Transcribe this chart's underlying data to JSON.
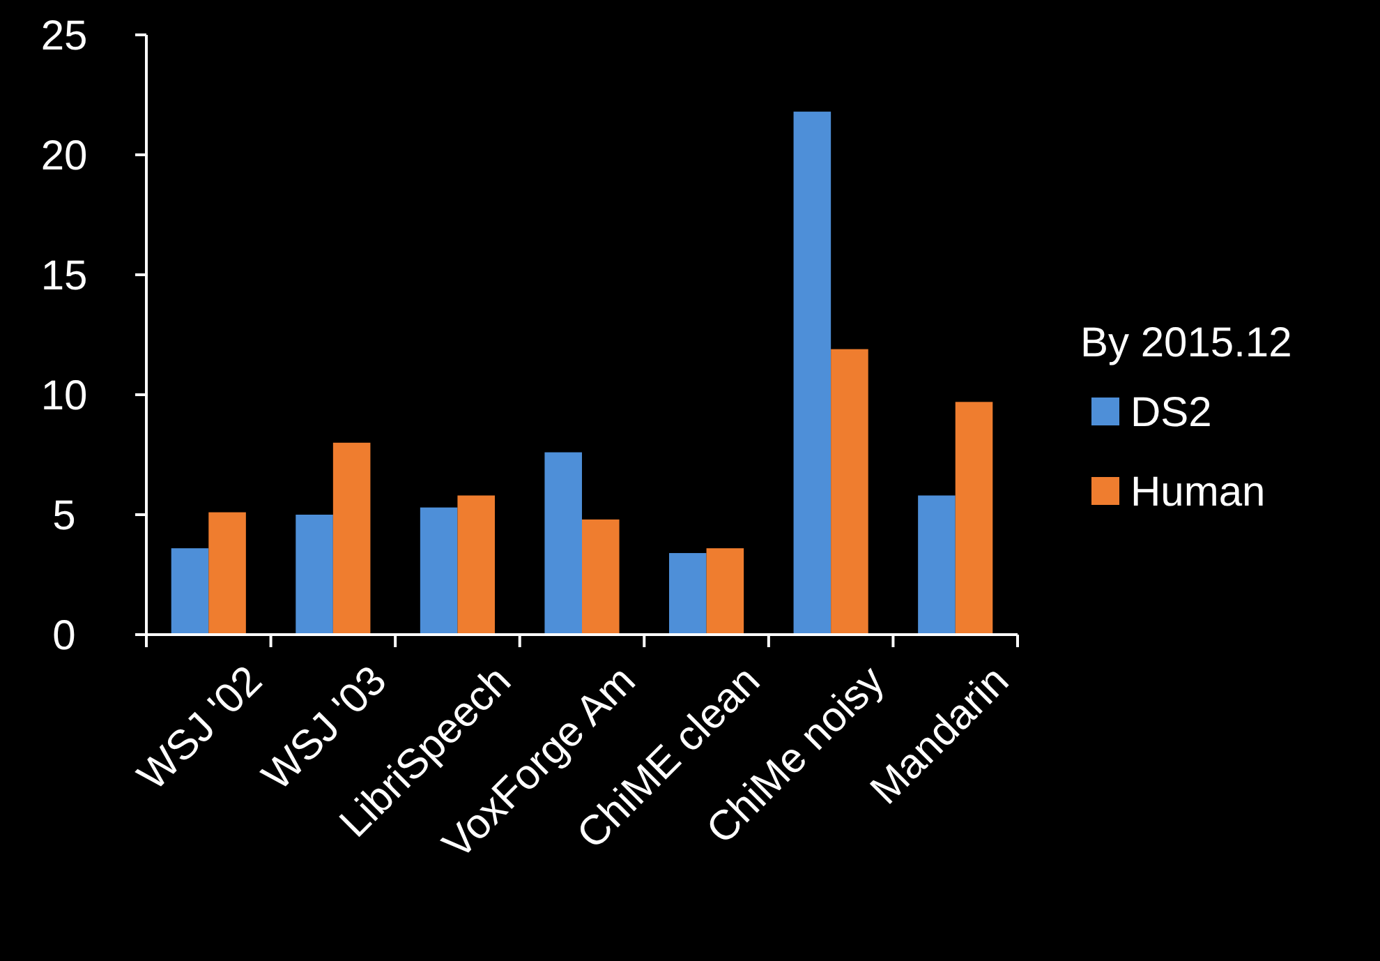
{
  "chart_data": {
    "type": "bar",
    "categories": [
      "WSJ '02",
      "WSJ '03",
      "LibriSpeech",
      "VoxForge Am",
      "ChiME clean",
      "ChiMe noisy",
      "Mandarin"
    ],
    "series": [
      {
        "name": "DS2",
        "color": "#4e8fd8",
        "values": [
          3.6,
          5.0,
          5.3,
          7.6,
          3.4,
          21.8,
          5.8
        ]
      },
      {
        "name": "Human",
        "color": "#ef7d2f",
        "values": [
          5.1,
          8.0,
          5.8,
          4.8,
          3.6,
          11.9,
          9.7
        ]
      }
    ],
    "ylim": [
      0,
      25
    ],
    "yticks": [
      0,
      5,
      10,
      15,
      20,
      25
    ],
    "legend_title": "By 2015.12",
    "legend": "right",
    "grid": false
  }
}
